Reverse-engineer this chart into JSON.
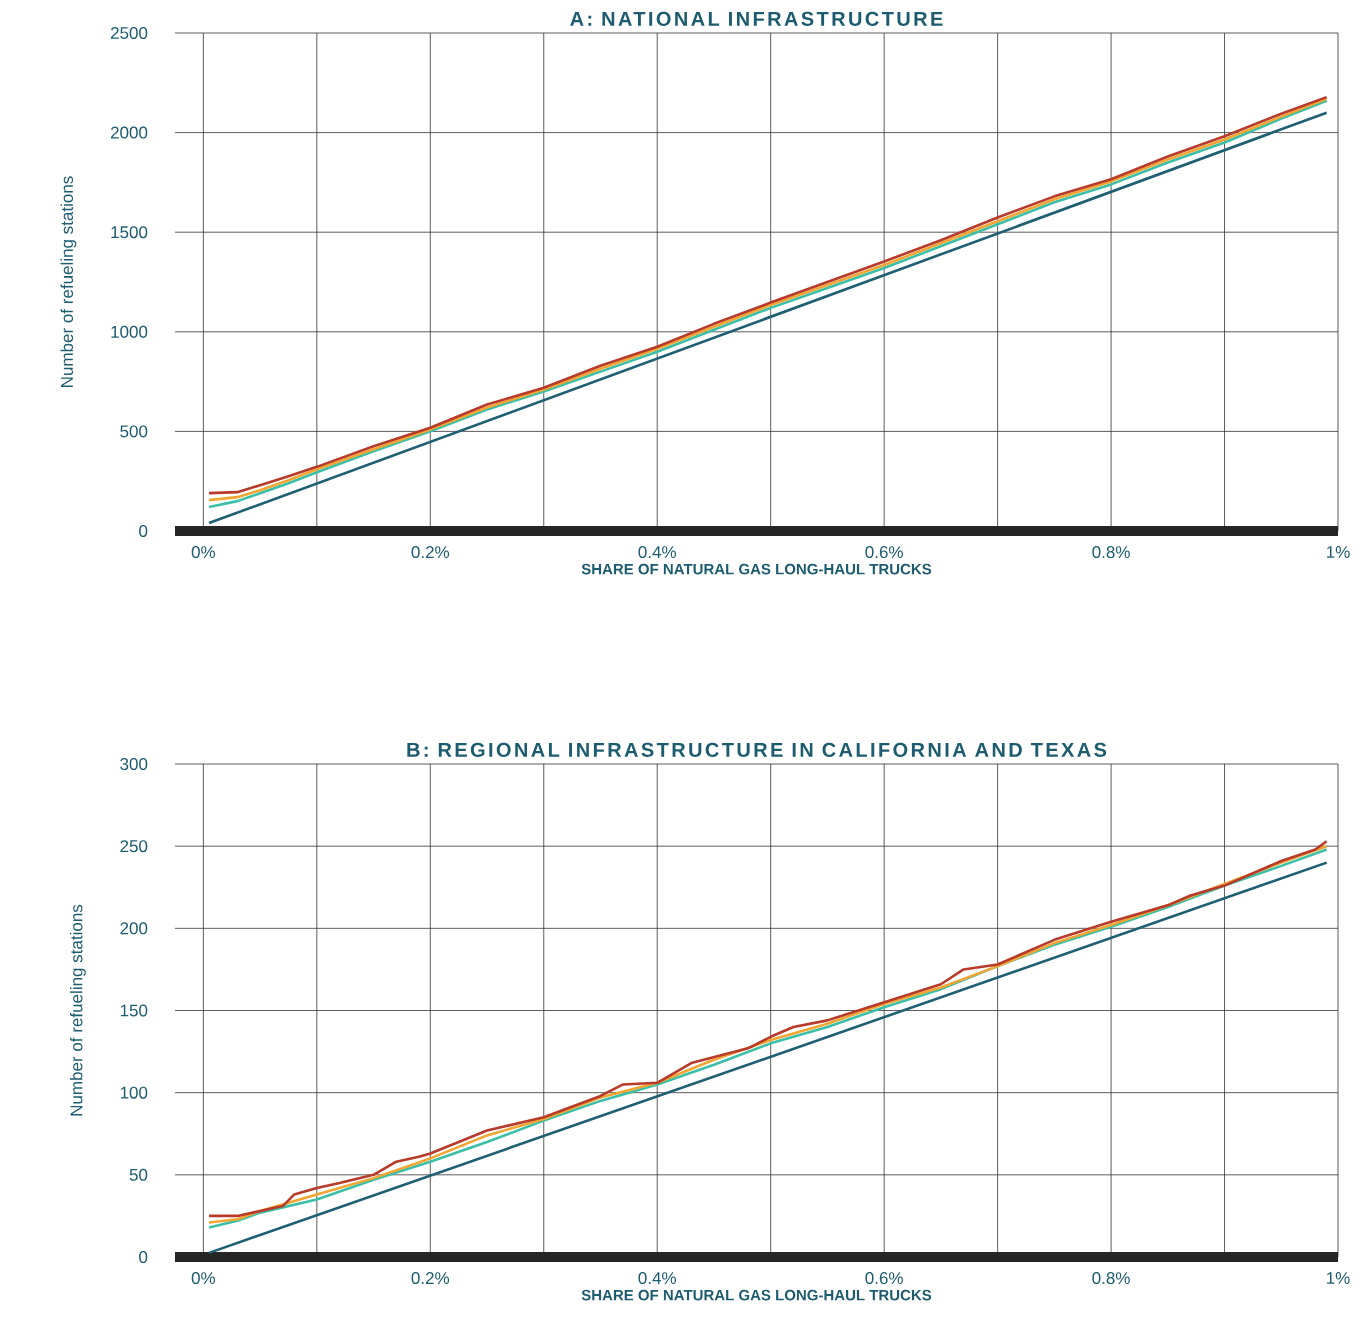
{
  "chart_data": [
    {
      "type": "line",
      "title": "A: NATIONAL INFRASTRUCTURE",
      "xlabel": "SHARE OF NATURAL GAS LONG-HAUL TRUCKS",
      "ylabel": "Number of refueling stations",
      "xlim": [
        -0.025,
        1
      ],
      "ylim": [
        0,
        2500
      ],
      "yticks": [
        0,
        500,
        1000,
        1500,
        2000,
        2500
      ],
      "xticks": [
        {
          "value": 0,
          "label": "0%"
        },
        {
          "value": 0.1,
          "label": null
        },
        {
          "value": 0.2,
          "label": "0.2%"
        },
        {
          "value": 0.3,
          "label": null
        },
        {
          "value": 0.4,
          "label": "0.4%"
        },
        {
          "value": 0.5,
          "label": null
        },
        {
          "value": 0.6,
          "label": "0.6%"
        },
        {
          "value": 0.7,
          "label": null
        },
        {
          "value": 0.8,
          "label": "0.8%"
        },
        {
          "value": 0.9,
          "label": null
        },
        {
          "value": 1,
          "label": "1%"
        }
      ],
      "grid": true,
      "legend": false,
      "marker": "none",
      "line_style": "solid",
      "series": [
        {
          "color": "#1f5f73",
          "x": [
            0.005,
            0.99
          ],
          "values": [
            40,
            2100
          ]
        },
        {
          "color": "#3cbfa8",
          "x": [
            0.005,
            0.03,
            0.05,
            0.075,
            0.1,
            0.15,
            0.2,
            0.25,
            0.3,
            0.35,
            0.4,
            0.45,
            0.5,
            0.55,
            0.6,
            0.65,
            0.7,
            0.75,
            0.8,
            0.85,
            0.9,
            0.95,
            0.99
          ],
          "values": [
            120,
            150,
            190,
            240,
            295,
            400,
            500,
            610,
            700,
            800,
            900,
            1010,
            1120,
            1220,
            1320,
            1430,
            1540,
            1650,
            1740,
            1850,
            1950,
            2070,
            2160
          ]
        },
        {
          "color": "#f2a531",
          "x": [
            0.005,
            0.03,
            0.05,
            0.075,
            0.1,
            0.15,
            0.2,
            0.25,
            0.3,
            0.35,
            0.4,
            0.45,
            0.5,
            0.55,
            0.6,
            0.65,
            0.7,
            0.75,
            0.8,
            0.85,
            0.9,
            0.95,
            0.99
          ],
          "values": [
            155,
            170,
            205,
            255,
            310,
            410,
            510,
            620,
            710,
            815,
            915,
            1025,
            1135,
            1235,
            1335,
            1445,
            1555,
            1665,
            1755,
            1865,
            1965,
            2080,
            2170
          ]
        },
        {
          "color": "#b83a2a",
          "x": [
            0.005,
            0.03,
            0.05,
            0.075,
            0.1,
            0.15,
            0.2,
            0.25,
            0.3,
            0.35,
            0.4,
            0.45,
            0.5,
            0.55,
            0.6,
            0.65,
            0.7,
            0.75,
            0.8,
            0.85,
            0.9,
            0.95,
            0.99
          ],
          "values": [
            190,
            195,
            230,
            275,
            322,
            425,
            518,
            635,
            719,
            830,
            925,
            1040,
            1147,
            1250,
            1353,
            1460,
            1574,
            1680,
            1766,
            1880,
            1982,
            2095,
            2178
          ]
        }
      ]
    },
    {
      "type": "line",
      "title": "B: REGIONAL INFRASTRUCTURE IN CALIFORNIA AND TEXAS",
      "xlabel": "SHARE OF NATURAL GAS LONG-HAUL TRUCKS",
      "ylabel": "Number of refueling stations",
      "xlim": [
        -0.025,
        1
      ],
      "ylim": [
        0,
        300
      ],
      "yticks": [
        0,
        50,
        100,
        150,
        200,
        250,
        300
      ],
      "xticks": [
        {
          "value": 0,
          "label": "0%"
        },
        {
          "value": 0.1,
          "label": null
        },
        {
          "value": 0.2,
          "label": "0.2%"
        },
        {
          "value": 0.3,
          "label": null
        },
        {
          "value": 0.4,
          "label": "0.4%"
        },
        {
          "value": 0.5,
          "label": null
        },
        {
          "value": 0.6,
          "label": "0.6%"
        },
        {
          "value": 0.7,
          "label": null
        },
        {
          "value": 0.8,
          "label": "0.8%"
        },
        {
          "value": 0.9,
          "label": null
        },
        {
          "value": 1,
          "label": "1%"
        }
      ],
      "grid": true,
      "legend": false,
      "marker": "none",
      "line_style": "solid",
      "series": [
        {
          "color": "#1f5f73",
          "x": [
            0.005,
            0.99
          ],
          "values": [
            2.5,
            240
          ]
        },
        {
          "color": "#3cbfa8",
          "x": [
            0.005,
            0.03,
            0.05,
            0.1,
            0.15,
            0.2,
            0.25,
            0.3,
            0.35,
            0.4,
            0.45,
            0.5,
            0.55,
            0.6,
            0.65,
            0.7,
            0.75,
            0.8,
            0.85,
            0.9,
            0.95,
            0.99
          ],
          "values": [
            18,
            22,
            27,
            35,
            47,
            58,
            70,
            83,
            95,
            105,
            117,
            130,
            140,
            152,
            163,
            177,
            190,
            201,
            213,
            226,
            238,
            248
          ]
        },
        {
          "color": "#f2a531",
          "x": [
            0.005,
            0.03,
            0.05,
            0.1,
            0.15,
            0.2,
            0.25,
            0.3,
            0.35,
            0.4,
            0.45,
            0.5,
            0.55,
            0.6,
            0.65,
            0.7,
            0.75,
            0.8,
            0.85,
            0.9,
            0.95,
            0.99
          ],
          "values": [
            21,
            23,
            28,
            38,
            48,
            60,
            74,
            84,
            97,
            106,
            120,
            132,
            142,
            154,
            164,
            177,
            191,
            202,
            214,
            227,
            240,
            250
          ]
        },
        {
          "color": "#b83a2a",
          "x": [
            0.005,
            0.03,
            0.05,
            0.07,
            0.08,
            0.1,
            0.12,
            0.15,
            0.17,
            0.19,
            0.2,
            0.25,
            0.3,
            0.35,
            0.37,
            0.4,
            0.43,
            0.48,
            0.5,
            0.52,
            0.55,
            0.6,
            0.65,
            0.67,
            0.7,
            0.75,
            0.8,
            0.85,
            0.87,
            0.9,
            0.95,
            0.98,
            0.99
          ],
          "values": [
            25,
            25,
            28,
            31,
            38,
            42,
            45,
            50,
            58,
            61,
            63,
            77,
            85,
            98,
            105,
            106,
            118,
            127,
            134,
            140,
            144,
            155,
            166,
            175,
            178,
            193,
            204,
            214,
            220,
            226,
            241,
            248,
            253
          ]
        }
      ]
    }
  ]
}
